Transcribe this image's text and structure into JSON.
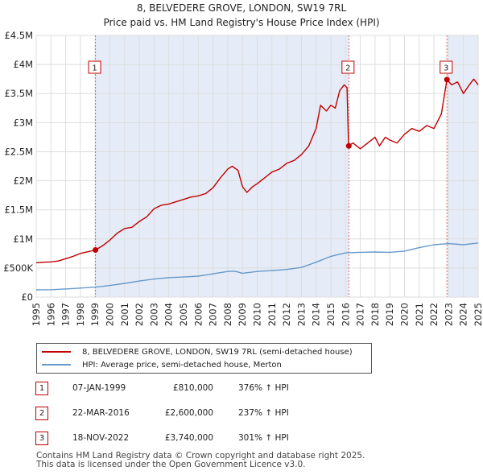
{
  "chart_data": {
    "type": "line",
    "title": "8, BELVEDERE GROVE, LONDON, SW19 7RL",
    "subtitle": "Price paid vs. HM Land Registry's House Price Index (HPI)",
    "xlim": [
      1995,
      2025
    ],
    "ylim": [
      0,
      4500000
    ],
    "x_ticks": [
      "1995",
      "1996",
      "1997",
      "1998",
      "1999",
      "2000",
      "2001",
      "2002",
      "2003",
      "2004",
      "2005",
      "2006",
      "2007",
      "2008",
      "2009",
      "2010",
      "2011",
      "2012",
      "2013",
      "2014",
      "2015",
      "2016",
      "2017",
      "2018",
      "2019",
      "2020",
      "2021",
      "2022",
      "2023",
      "2024",
      "2025"
    ],
    "y_ticks": [
      {
        "label": "£0",
        "value": 0
      },
      {
        "label": "£500K",
        "value": 500000
      },
      {
        "label": "£1M",
        "value": 1000000
      },
      {
        "label": "£1.5M",
        "value": 1500000
      },
      {
        "label": "£2M",
        "value": 2000000
      },
      {
        "label": "£2.5M",
        "value": 2500000
      },
      {
        "label": "£3M",
        "value": 3000000
      },
      {
        "label": "£3.5M",
        "value": 3500000
      },
      {
        "label": "£4M",
        "value": 4000000
      },
      {
        "label": "£4.5M",
        "value": 4500000
      }
    ],
    "grid": true,
    "series": [
      {
        "name": "8, BELVEDERE GROVE, LONDON, SW19 7RL (semi-detached house)",
        "color": "#c00000",
        "points": [
          [
            1995.0,
            590000
          ],
          [
            1995.5,
            600000
          ],
          [
            1996.0,
            605000
          ],
          [
            1996.5,
            620000
          ],
          [
            1997.0,
            660000
          ],
          [
            1997.5,
            700000
          ],
          [
            1998.0,
            750000
          ],
          [
            1998.5,
            780000
          ],
          [
            1999.02,
            810000
          ],
          [
            1999.5,
            880000
          ],
          [
            2000.0,
            980000
          ],
          [
            2000.5,
            1100000
          ],
          [
            2001.0,
            1180000
          ],
          [
            2001.5,
            1200000
          ],
          [
            2002.0,
            1300000
          ],
          [
            2002.5,
            1380000
          ],
          [
            2003.0,
            1520000
          ],
          [
            2003.5,
            1580000
          ],
          [
            2004.0,
            1600000
          ],
          [
            2004.5,
            1640000
          ],
          [
            2005.0,
            1680000
          ],
          [
            2005.5,
            1720000
          ],
          [
            2006.0,
            1740000
          ],
          [
            2006.5,
            1780000
          ],
          [
            2007.0,
            1880000
          ],
          [
            2007.5,
            2050000
          ],
          [
            2008.0,
            2200000
          ],
          [
            2008.3,
            2250000
          ],
          [
            2008.7,
            2180000
          ],
          [
            2009.0,
            1900000
          ],
          [
            2009.3,
            1800000
          ],
          [
            2009.7,
            1900000
          ],
          [
            2010.0,
            1950000
          ],
          [
            2010.5,
            2050000
          ],
          [
            2011.0,
            2150000
          ],
          [
            2011.5,
            2200000
          ],
          [
            2012.0,
            2300000
          ],
          [
            2012.5,
            2350000
          ],
          [
            2013.0,
            2450000
          ],
          [
            2013.5,
            2600000
          ],
          [
            2014.0,
            2900000
          ],
          [
            2014.3,
            3300000
          ],
          [
            2014.7,
            3200000
          ],
          [
            2015.0,
            3300000
          ],
          [
            2015.3,
            3250000
          ],
          [
            2015.6,
            3550000
          ],
          [
            2015.9,
            3650000
          ],
          [
            2016.1,
            3600000
          ],
          [
            2016.2,
            2600000
          ],
          [
            2016.5,
            2650000
          ],
          [
            2017.0,
            2550000
          ],
          [
            2017.5,
            2650000
          ],
          [
            2018.0,
            2750000
          ],
          [
            2018.3,
            2600000
          ],
          [
            2018.7,
            2750000
          ],
          [
            2019.0,
            2700000
          ],
          [
            2019.5,
            2650000
          ],
          [
            2020.0,
            2800000
          ],
          [
            2020.5,
            2900000
          ],
          [
            2021.0,
            2850000
          ],
          [
            2021.5,
            2950000
          ],
          [
            2022.0,
            2900000
          ],
          [
            2022.5,
            3150000
          ],
          [
            2022.88,
            3740000
          ],
          [
            2023.2,
            3650000
          ],
          [
            2023.6,
            3700000
          ],
          [
            2024.0,
            3500000
          ],
          [
            2024.4,
            3650000
          ],
          [
            2024.7,
            3750000
          ],
          [
            2025.0,
            3650000
          ]
        ]
      },
      {
        "name": "HPI: Average price, semi-detached house, Merton",
        "color": "#6699cc",
        "points": [
          [
            1995.0,
            125000
          ],
          [
            1996.0,
            128000
          ],
          [
            1997.0,
            140000
          ],
          [
            1998.0,
            155000
          ],
          [
            1999.0,
            170000
          ],
          [
            2000.0,
            200000
          ],
          [
            2001.0,
            235000
          ],
          [
            2002.0,
            275000
          ],
          [
            2003.0,
            310000
          ],
          [
            2004.0,
            335000
          ],
          [
            2005.0,
            345000
          ],
          [
            2006.0,
            360000
          ],
          [
            2007.0,
            400000
          ],
          [
            2008.0,
            440000
          ],
          [
            2008.5,
            445000
          ],
          [
            2009.0,
            410000
          ],
          [
            2010.0,
            440000
          ],
          [
            2011.0,
            455000
          ],
          [
            2012.0,
            475000
          ],
          [
            2013.0,
            510000
          ],
          [
            2014.0,
            600000
          ],
          [
            2015.0,
            700000
          ],
          [
            2016.0,
            760000
          ],
          [
            2017.0,
            770000
          ],
          [
            2018.0,
            775000
          ],
          [
            2019.0,
            770000
          ],
          [
            2020.0,
            790000
          ],
          [
            2021.0,
            850000
          ],
          [
            2022.0,
            900000
          ],
          [
            2023.0,
            920000
          ],
          [
            2024.0,
            900000
          ],
          [
            2025.0,
            930000
          ]
        ]
      }
    ],
    "annotations": [
      {
        "label": "1",
        "x": 1999.02,
        "value": 810000
      },
      {
        "label": "2",
        "x": 2016.22,
        "value": 2600000
      },
      {
        "label": "3",
        "x": 2022.88,
        "value": 3740000
      }
    ],
    "shaded_periods": [
      [
        1999.02,
        2016.22
      ],
      [
        2022.88,
        2025.0
      ]
    ]
  },
  "legend": {
    "property_label": "8, BELVEDERE GROVE, LONDON, SW19 7RL (semi-detached house)",
    "hpi_label": "HPI: Average price, semi-detached house, Merton",
    "property_color": "#c00000",
    "hpi_color": "#6699cc"
  },
  "sales": [
    {
      "num": "1",
      "date": "07-JAN-1999",
      "price": "£810,000",
      "hpi": "376% ↑ HPI"
    },
    {
      "num": "2",
      "date": "22-MAR-2016",
      "price": "£2,600,000",
      "hpi": "237% ↑ HPI"
    },
    {
      "num": "3",
      "date": "18-NOV-2022",
      "price": "£3,740,000",
      "hpi": "301% ↑ HPI"
    }
  ],
  "footer": {
    "line1": "Contains HM Land Registry data © Crown copyright and database right 2025.",
    "line2": "This data is licensed under the Open Government Licence v3.0."
  }
}
